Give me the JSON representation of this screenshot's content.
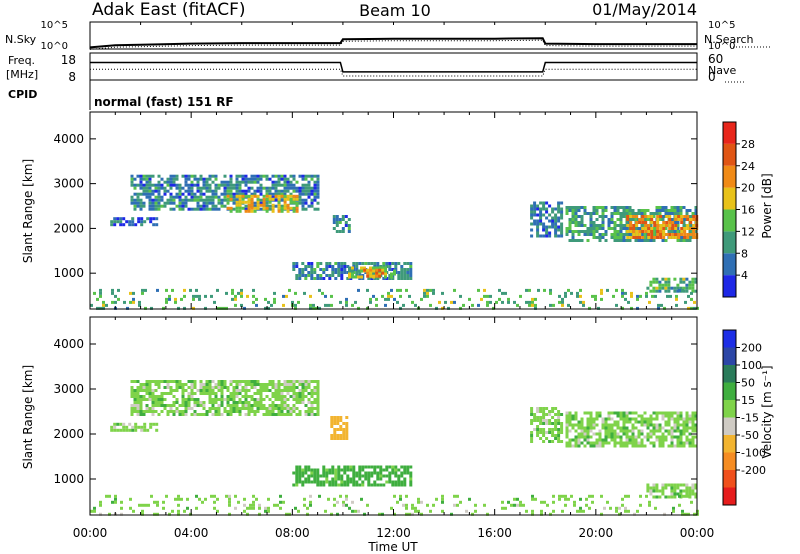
{
  "header": {
    "station": "Adak East (fitACF)",
    "beam": "Beam 10",
    "date": "01/May/2014"
  },
  "side_labels": {
    "nsky": "N.Sky",
    "freq_line1": "Freq.",
    "freq_line2": "[MHz]",
    "cpid": "CPID",
    "nsearch": "N.Search",
    "nave": "Nave"
  },
  "colors": {
    "power_scale": [
      "#1e28e6",
      "#2f6fb4",
      "#3f9a7a",
      "#59c24a",
      "#e8c21a",
      "#f08a16",
      "#e05514",
      "#e8261b"
    ],
    "velocity_scale": [
      "#e61c1c",
      "#f0501c",
      "#f58c22",
      "#f2b430",
      "#cfcbc4",
      "#7fd34a",
      "#3fae3f",
      "#2a7b5a",
      "#2c46a6",
      "#1d2ee6"
    ],
    "background": "#ffffff"
  },
  "chart_data": [
    {
      "type": "line",
      "name": "N.Sky / N.Search noise panel",
      "ytick_labels_left": [
        "10^5",
        "10^0"
      ],
      "ytick_labels_right": [
        "10^5",
        "10^0"
      ],
      "x": [
        0,
        1,
        2,
        4,
        6,
        8,
        9.9,
        10,
        12,
        14,
        16,
        17.9,
        18,
        20,
        22,
        24
      ],
      "values": [
        0.3,
        0.7,
        0.8,
        1.0,
        1.1,
        1.1,
        1.1,
        1.8,
        1.9,
        1.9,
        1.9,
        2.0,
        1.0,
        0.9,
        0.9,
        0.9
      ],
      "ylim": [
        0,
        5
      ]
    },
    {
      "type": "line",
      "name": "Frequency / Nave panel",
      "ytick_labels_left": [
        "18",
        "8"
      ],
      "ytick_labels_right": [
        "60",
        "0"
      ],
      "series": [
        {
          "x": [
            0,
            9.9,
            10,
            17.9,
            18,
            24
          ],
          "values": [
            14.5,
            14.5,
            11.0,
            11.0,
            14.5,
            14.5
          ]
        },
        {
          "x": [
            0,
            9.9,
            10,
            17.9,
            18,
            24
          ],
          "values": [
            12.0,
            12.0,
            9.5,
            9.5,
            12.0,
            12.0
          ]
        }
      ],
      "ylim": [
        8,
        18
      ]
    },
    {
      "type": "table",
      "name": "CPID panel",
      "text": "normal (fast) 151 RF"
    },
    {
      "type": "heatmap",
      "name": "Power",
      "ylabel": "Slant Range [km]",
      "xlim": [
        0,
        24
      ],
      "ylim": [
        200,
        4600
      ],
      "yticks": [
        1000,
        2000,
        3000,
        4000
      ],
      "colorbar": {
        "label": "Power [dB]",
        "ticks": [
          4,
          8,
          12,
          16,
          20,
          24,
          28
        ],
        "range": [
          0,
          32
        ]
      },
      "regions": [
        {
          "x0": 1.6,
          "x1": 9.0,
          "y0": 2400,
          "y1": 3200,
          "value": 8
        },
        {
          "x0": 5.4,
          "x1": 8.2,
          "y0": 2350,
          "y1": 2750,
          "value": 18
        },
        {
          "x0": 0.8,
          "x1": 2.6,
          "y0": 2050,
          "y1": 2250,
          "value": 6
        },
        {
          "x0": 8.0,
          "x1": 12.7,
          "y0": 850,
          "y1": 1250,
          "value": 8
        },
        {
          "x0": 10.2,
          "x1": 12.0,
          "y0": 900,
          "y1": 1150,
          "value": 14
        },
        {
          "x0": 10.8,
          "x1": 11.6,
          "y0": 900,
          "y1": 1100,
          "value": 22
        },
        {
          "x0": 9.6,
          "x1": 10.2,
          "y0": 1900,
          "y1": 2300,
          "value": 8
        },
        {
          "x0": 17.4,
          "x1": 18.6,
          "y0": 1800,
          "y1": 2600,
          "value": 7
        },
        {
          "x0": 18.8,
          "x1": 24.0,
          "y0": 1700,
          "y1": 2500,
          "value": 10
        },
        {
          "x0": 21.2,
          "x1": 24.0,
          "y0": 1800,
          "y1": 2300,
          "value": 22
        },
        {
          "x0": 22.0,
          "x1": 24.0,
          "y0": 600,
          "y1": 900,
          "value": 12
        },
        {
          "x0": 0.0,
          "x1": 24.0,
          "y0": 200,
          "y1": 650,
          "value": 12,
          "sparse": true
        }
      ]
    },
    {
      "type": "heatmap",
      "name": "Velocity",
      "ylabel": "Slant Range [km]",
      "xlabel": "Time UT",
      "xlim": [
        0,
        24
      ],
      "ylim": [
        200,
        4600
      ],
      "yticks": [
        1000,
        2000,
        3000,
        4000
      ],
      "xtick_labels": [
        "00:00",
        "04:00",
        "08:00",
        "12:00",
        "16:00",
        "20:00",
        "00:00"
      ],
      "colorbar": {
        "label": "Velocity [m s⁻¹]",
        "ticks": [
          200,
          100,
          50,
          15,
          -15,
          -50,
          -100,
          -200
        ]
      },
      "regions": [
        {
          "x0": 1.6,
          "x1": 9.0,
          "y0": 2400,
          "y1": 3200,
          "value": 0
        },
        {
          "x0": 0.8,
          "x1": 2.6,
          "y0": 2050,
          "y1": 2250,
          "value": 0
        },
        {
          "x0": 9.5,
          "x1": 10.2,
          "y0": 1900,
          "y1": 2400,
          "value": -80
        },
        {
          "x0": 8.0,
          "x1": 12.7,
          "y0": 850,
          "y1": 1300,
          "value": 30
        },
        {
          "x0": 17.4,
          "x1": 18.6,
          "y0": 1800,
          "y1": 2600,
          "value": 0
        },
        {
          "x0": 18.8,
          "x1": 24.0,
          "y0": 1700,
          "y1": 2500,
          "value": 0
        },
        {
          "x0": 22.0,
          "x1": 24.0,
          "y0": 600,
          "y1": 900,
          "value": 0
        },
        {
          "x0": 0.0,
          "x1": 24.0,
          "y0": 200,
          "y1": 650,
          "value": 0,
          "sparse": true
        }
      ]
    }
  ]
}
